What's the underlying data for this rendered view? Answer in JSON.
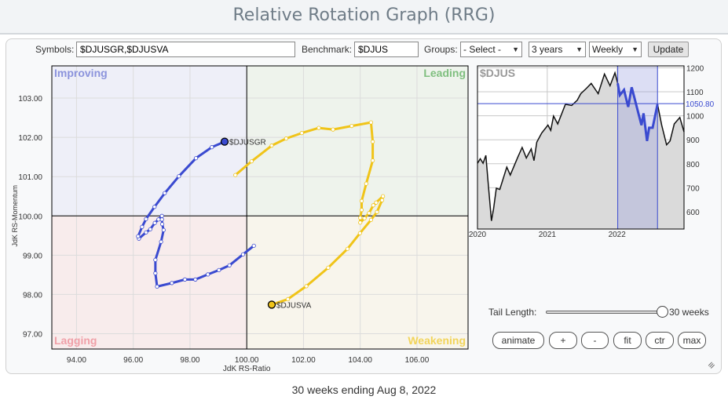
{
  "title": "Relative Rotation Graph (RRG)",
  "controls": {
    "symbols_label": "Symbols:",
    "symbols_value": "$DJUSGR,$DJUSVA",
    "benchmark_label": "Benchmark:",
    "benchmark_value": "$DJUS",
    "groups_label": "Groups:",
    "groups_value": "- Select -",
    "period_value": "3 years",
    "frequency_value": "Weekly",
    "update_label": "Update"
  },
  "rrg": {
    "quadrants": {
      "improving": "Improving",
      "leading": "Leading",
      "lagging": "Lagging",
      "weakening": "Weakening"
    },
    "quadrant_colors": {
      "improving": "#8b93dc",
      "leading": "#7fbf7f",
      "lagging": "#f0a0a8",
      "weakening": "#f2d45a"
    },
    "xlabel": "JdK RS-Ratio",
    "ylabel": "JdK RS-Momentum",
    "xlim": [
      93.13,
      107.8
    ],
    "ylim": [
      96.61,
      103.82
    ],
    "x_ticks": [
      "94.00",
      "96.00",
      "98.00",
      "100.00",
      "102.00",
      "104.00",
      "106.00"
    ],
    "y_ticks": [
      "103.00",
      "102.00",
      "101.00",
      "100.00",
      "99.00",
      "98.00",
      "97.00"
    ],
    "series": [
      {
        "name": "$DJUSGR",
        "color": "#3a4ad0",
        "x": [
          100.25,
          99.87,
          99.39,
          99.02,
          98.63,
          98.19,
          97.82,
          97.36,
          96.84,
          96.78,
          96.78,
          96.98,
          97.07,
          97.02,
          97.01,
          97.01,
          96.89,
          96.76,
          96.6,
          96.45,
          96.2,
          96.17,
          96.31,
          96.45,
          96.75,
          97.11,
          97.61,
          98.21,
          98.77,
          99.22
        ],
        "y": [
          99.24,
          99.02,
          98.74,
          98.62,
          98.51,
          98.38,
          98.38,
          98.29,
          98.2,
          98.54,
          98.88,
          99.34,
          99.64,
          99.79,
          99.91,
          100.0,
          99.91,
          99.82,
          99.66,
          99.58,
          99.42,
          99.48,
          99.72,
          99.92,
          100.23,
          100.58,
          101.01,
          101.47,
          101.75,
          101.89
        ]
      },
      {
        "name": "$DJUSVA",
        "color": "#f0c419",
        "x": [
          99.6,
          100.17,
          100.88,
          101.39,
          101.94,
          102.54,
          103.04,
          103.7,
          104.38,
          104.44,
          104.44,
          104.21,
          104.05,
          104.05,
          104.0,
          104.0,
          104.15,
          104.31,
          104.46,
          104.56,
          104.8,
          104.77,
          104.59,
          104.38,
          103.99,
          103.55,
          102.87,
          102.1,
          101.45,
          100.88
        ],
        "y": [
          101.04,
          101.39,
          101.79,
          101.97,
          102.11,
          102.24,
          102.2,
          102.29,
          102.38,
          101.89,
          101.41,
          100.82,
          100.38,
          100.15,
          99.95,
          99.83,
          99.94,
          100.07,
          100.27,
          100.34,
          100.5,
          100.4,
          100.1,
          99.9,
          99.56,
          99.16,
          98.68,
          98.21,
          97.88,
          97.74
        ]
      }
    ]
  },
  "benchmark_chart": {
    "symbol": "$DJUS",
    "ylim": [
      528,
      1208
    ],
    "xlim": [
      2020.0,
      2022.96
    ],
    "y_ticks": [
      "1200",
      "1100",
      "1000",
      "900",
      "800",
      "700",
      "600"
    ],
    "x_ticks": [
      "2020",
      "2021",
      "2022"
    ],
    "current_value_label": "1050.80",
    "current_value": 1050.8,
    "highlight_range": [
      2022.01,
      2022.58
    ],
    "points": [
      [
        2020.0,
        802
      ],
      [
        2020.04,
        821
      ],
      [
        2020.08,
        802
      ],
      [
        2020.12,
        835
      ],
      [
        2020.15,
        731
      ],
      [
        2020.2,
        562
      ],
      [
        2020.23,
        611
      ],
      [
        2020.27,
        698
      ],
      [
        2020.32,
        693
      ],
      [
        2020.42,
        786
      ],
      [
        2020.47,
        753
      ],
      [
        2020.58,
        829
      ],
      [
        2020.64,
        868
      ],
      [
        2020.7,
        824
      ],
      [
        2020.77,
        862
      ],
      [
        2020.81,
        813
      ],
      [
        2020.85,
        890
      ],
      [
        2020.92,
        928
      ],
      [
        2021.01,
        961
      ],
      [
        2021.05,
        939
      ],
      [
        2021.09,
        999
      ],
      [
        2021.15,
        966
      ],
      [
        2021.26,
        1048
      ],
      [
        2021.35,
        1043
      ],
      [
        2021.43,
        1065
      ],
      [
        2021.48,
        1092
      ],
      [
        2021.56,
        1114
      ],
      [
        2021.63,
        1135
      ],
      [
        2021.73,
        1092
      ],
      [
        2021.82,
        1174
      ],
      [
        2021.9,
        1125
      ],
      [
        2021.97,
        1179
      ],
      [
        2022.01,
        1135
      ],
      [
        2022.04,
        1086
      ],
      [
        2022.1,
        1108
      ],
      [
        2022.16,
        1037
      ],
      [
        2022.21,
        1119
      ],
      [
        2022.35,
        961
      ],
      [
        2022.38,
        1010
      ],
      [
        2022.43,
        895
      ],
      [
        2022.46,
        950
      ],
      [
        2022.51,
        950
      ],
      [
        2022.58,
        1048
      ],
      [
        2022.64,
        961
      ],
      [
        2022.71,
        879
      ],
      [
        2022.76,
        895
      ],
      [
        2022.82,
        966
      ],
      [
        2022.9,
        993
      ],
      [
        2022.96,
        933
      ]
    ]
  },
  "tail": {
    "label": "Tail Length:",
    "value_label": "30 weeks",
    "weeks": 30,
    "max_weeks": 30
  },
  "buttons": {
    "animate": "animate",
    "plus": "+",
    "minus": "-",
    "fit": "fit",
    "ctr": "ctr",
    "max": "max"
  },
  "footer": "30 weeks ending Aug 8, 2022"
}
